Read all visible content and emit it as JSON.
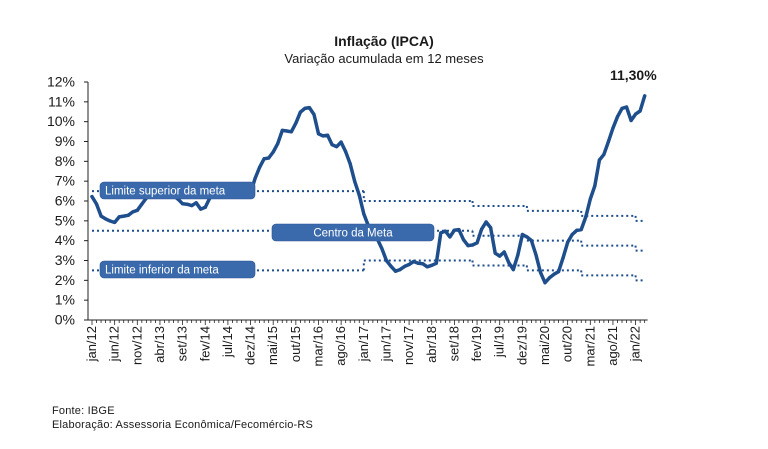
{
  "chart_data": {
    "type": "line",
    "title": "Inflação (IPCA)",
    "subtitle": "Variação acumulada em 12 meses",
    "ylim": [
      0,
      12
    ],
    "y_ticks": [
      "0%",
      "1%",
      "2%",
      "3%",
      "4%",
      "5%",
      "6%",
      "7%",
      "8%",
      "9%",
      "10%",
      "11%",
      "12%"
    ],
    "x_tick_labels": [
      "jan/12",
      "jun/12",
      "nov/12",
      "abr/13",
      "set/13",
      "fev/14",
      "jul/14",
      "dez/14",
      "mai/15",
      "out/15",
      "mar/16",
      "ago/16",
      "jan/17",
      "jun/17",
      "nov/17",
      "abr/18",
      "set/18",
      "fev/19",
      "jul/19",
      "dez/19",
      "mai/20",
      "out/20",
      "mar/21",
      "ago/21",
      "jan/22"
    ],
    "x_start": "jan/12",
    "x_end": "mar/22",
    "grid": false,
    "series": [
      {
        "name": "IPCA",
        "color": "#1f4e8c",
        "values": [
          6.22,
          5.85,
          5.24,
          5.1,
          4.99,
          4.92,
          5.2,
          5.24,
          5.28,
          5.45,
          5.53,
          5.84,
          6.15,
          6.31,
          6.59,
          6.49,
          6.5,
          6.7,
          6.27,
          6.09,
          5.86,
          5.84,
          5.77,
          5.91,
          5.59,
          5.68,
          6.15,
          6.28,
          6.37,
          6.52,
          6.5,
          6.51,
          6.75,
          6.59,
          6.56,
          6.41,
          7.14,
          7.7,
          8.13,
          8.17,
          8.47,
          8.89,
          9.56,
          9.53,
          9.49,
          9.93,
          10.48,
          10.67,
          10.71,
          10.36,
          9.39,
          9.28,
          9.32,
          8.84,
          8.74,
          8.97,
          8.48,
          7.87,
          6.99,
          6.29,
          5.35,
          4.76,
          4.57,
          4.08,
          3.6,
          3.0,
          2.71,
          2.46,
          2.54,
          2.7,
          2.8,
          2.95,
          2.86,
          2.84,
          2.68,
          2.76,
          2.86,
          4.39,
          4.48,
          4.19,
          4.53,
          4.56,
          4.05,
          3.75,
          3.78,
          3.89,
          4.58,
          4.94,
          4.66,
          3.37,
          3.22,
          3.43,
          2.89,
          2.54,
          3.27,
          4.31,
          4.19,
          4.01,
          3.3,
          2.4,
          1.88,
          2.13,
          2.31,
          2.44,
          3.14,
          3.92,
          4.31,
          4.52,
          4.56,
          5.2,
          6.1,
          6.76,
          8.06,
          8.35,
          8.99,
          9.68,
          10.25,
          10.67,
          10.74,
          10.06,
          10.38,
          10.54,
          11.3
        ]
      }
    ],
    "reference_lines": [
      {
        "label": "Limite superior da meta",
        "color": "#1f4e8c",
        "style": "dotted",
        "segments": [
          {
            "from": "jan/12",
            "to": "dez/16",
            "value": 6.5
          },
          {
            "from": "jan/17",
            "to": "dez/18",
            "value": 6.0
          },
          {
            "from": "jan/19",
            "to": "dez/19",
            "value": 5.75
          },
          {
            "from": "jan/20",
            "to": "dez/20",
            "value": 5.5
          },
          {
            "from": "jan/21",
            "to": "dez/21",
            "value": 5.25
          },
          {
            "from": "jan/22",
            "to": "mar/22",
            "value": 5.0
          }
        ]
      },
      {
        "label": "Centro da Meta",
        "color": "#1f4e8c",
        "style": "dotted",
        "segments": [
          {
            "from": "jan/12",
            "to": "dez/18",
            "value": 4.5
          },
          {
            "from": "jan/19",
            "to": "dez/19",
            "value": 4.25
          },
          {
            "from": "jan/20",
            "to": "dez/20",
            "value": 4.0
          },
          {
            "from": "jan/21",
            "to": "dez/21",
            "value": 3.75
          },
          {
            "from": "jan/22",
            "to": "mar/22",
            "value": 3.5
          }
        ]
      },
      {
        "label": "Limite inferior da meta",
        "color": "#1f4e8c",
        "style": "dotted",
        "segments": [
          {
            "from": "jan/12",
            "to": "dez/16",
            "value": 2.5
          },
          {
            "from": "jan/17",
            "to": "dez/18",
            "value": 3.0
          },
          {
            "from": "jan/19",
            "to": "dez/19",
            "value": 2.75
          },
          {
            "from": "jan/20",
            "to": "dez/20",
            "value": 2.5
          },
          {
            "from": "jan/21",
            "to": "dez/21",
            "value": 2.25
          },
          {
            "from": "jan/22",
            "to": "mar/22",
            "value": 2.0
          }
        ]
      }
    ],
    "annotations": [
      {
        "text": "11,30%",
        "at": "mar/22",
        "value": 11.3
      }
    ]
  },
  "footer": {
    "source": "Fonte: IBGE",
    "elaboration": "Elaboração: Assessoria Econômica/Fecomércio-RS"
  }
}
